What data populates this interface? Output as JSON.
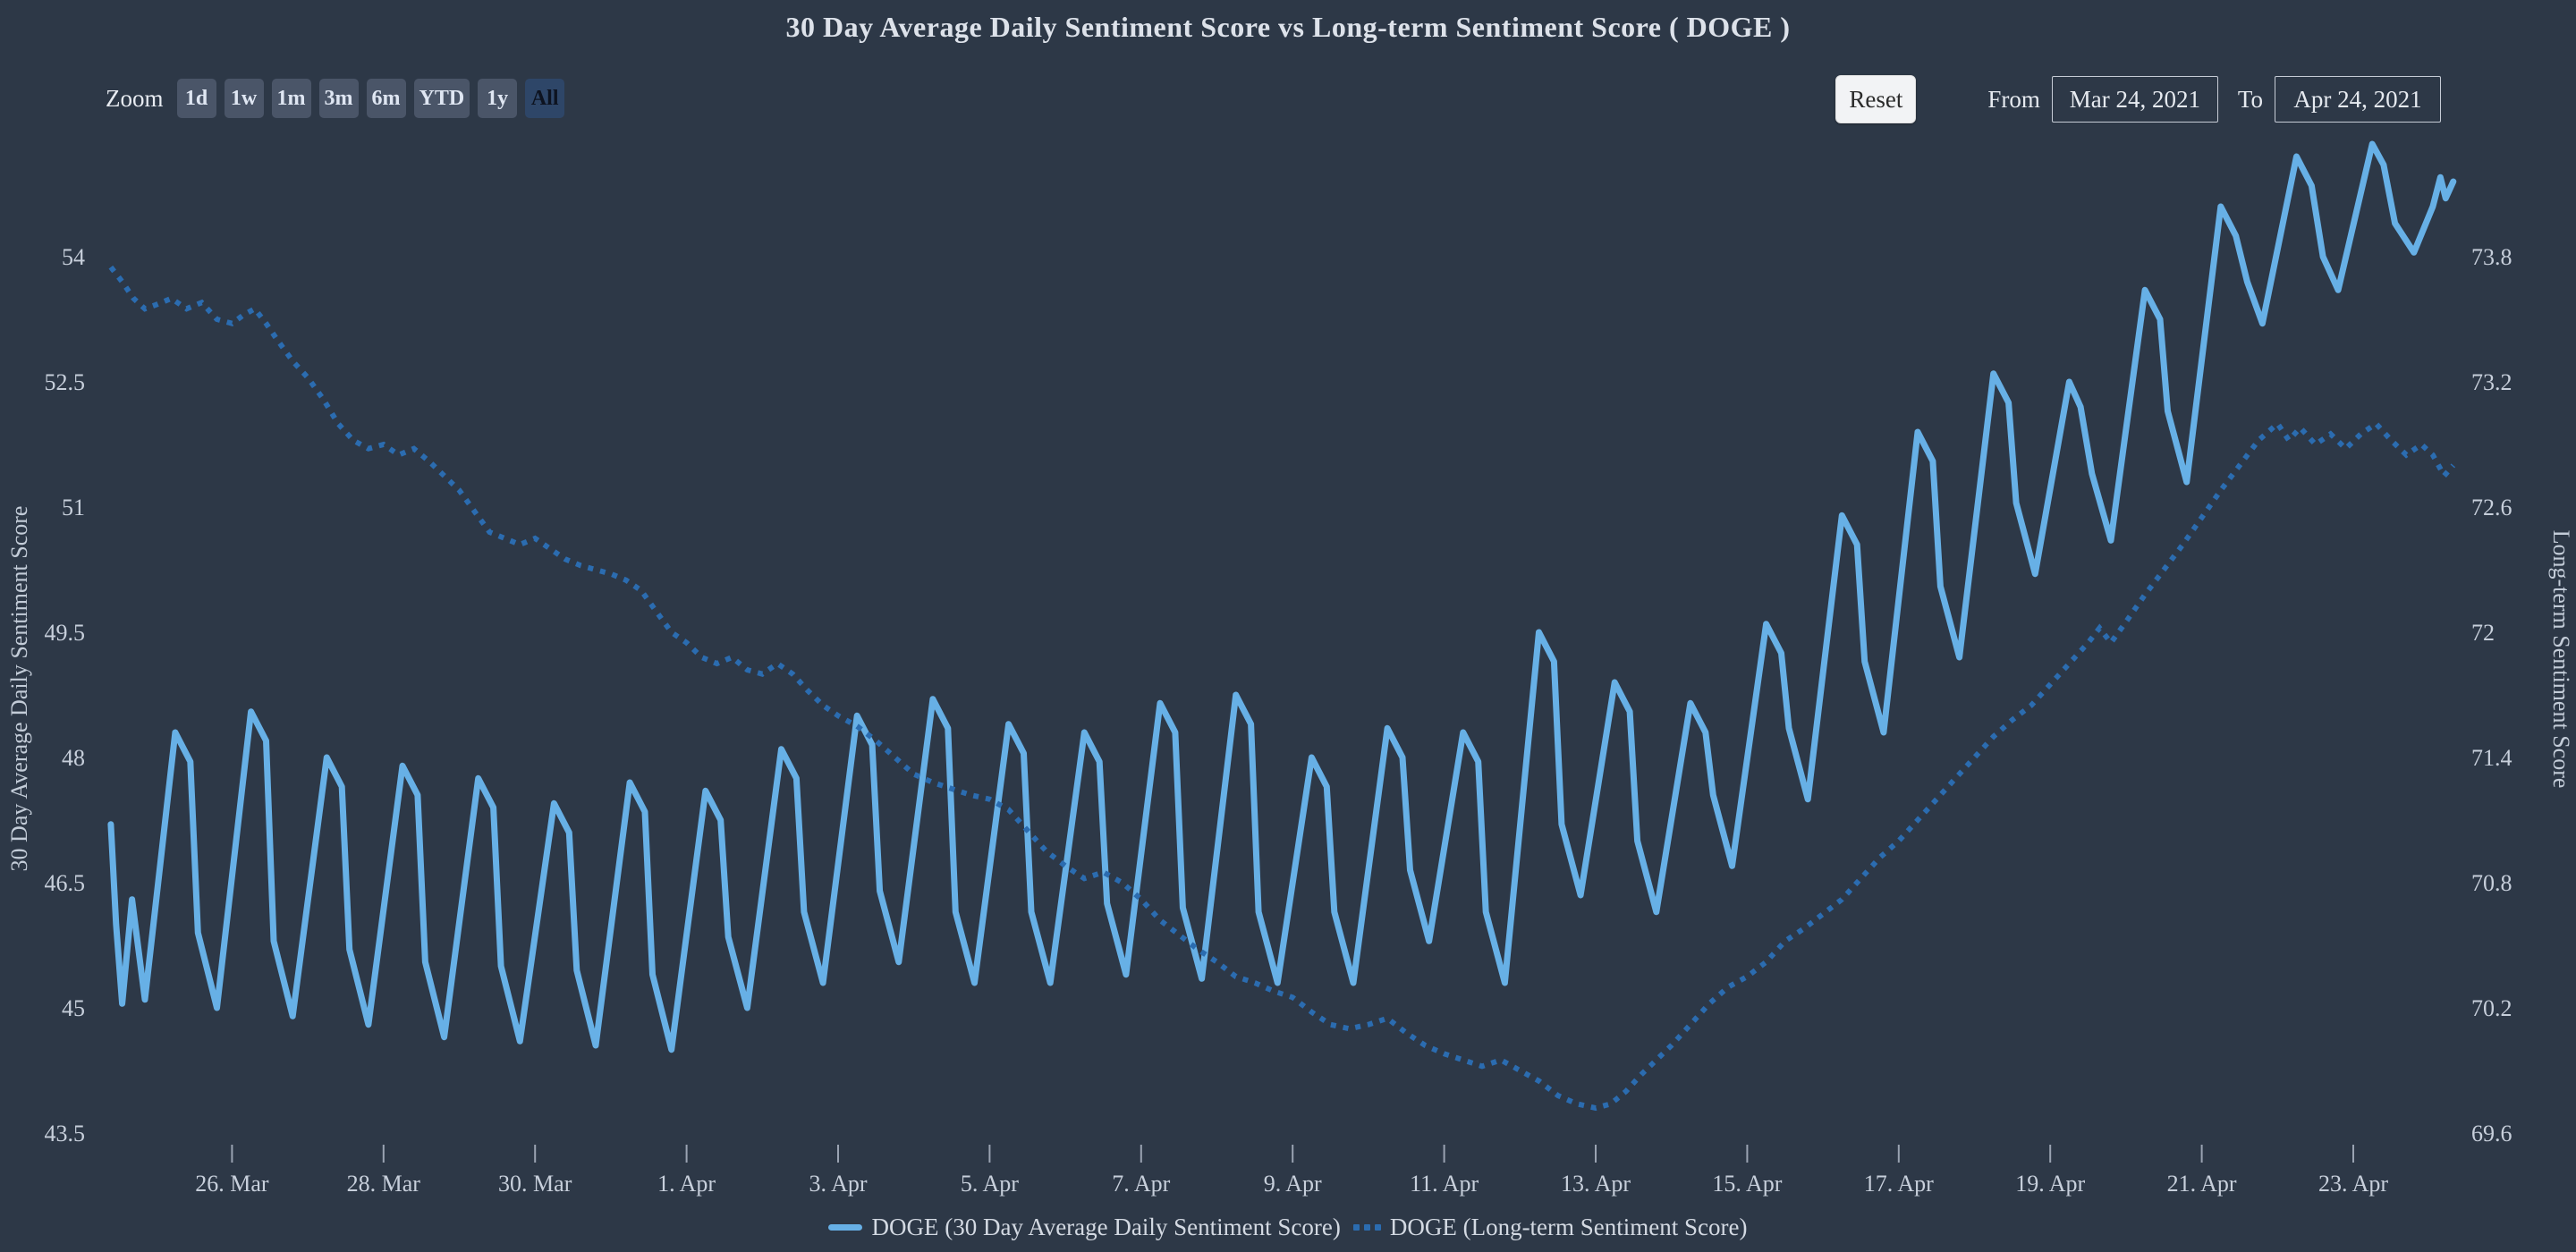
{
  "title": "30 Day Average Daily Sentiment Score vs Long-term Sentiment Score ( DOGE )",
  "colors": {
    "background": "#2d3847",
    "solid_series": "#67b0e6",
    "dotted_series": "#2b6cb0",
    "button_bg": "#4a5568",
    "button_selected_bg": "#2e4668",
    "text_light": "#dde2ea"
  },
  "toolbar": {
    "zoom_label": "Zoom",
    "zoom_buttons": [
      {
        "label": "1d",
        "selected": false
      },
      {
        "label": "1w",
        "selected": false
      },
      {
        "label": "1m",
        "selected": false
      },
      {
        "label": "3m",
        "selected": false
      },
      {
        "label": "6m",
        "selected": false
      },
      {
        "label": "YTD",
        "selected": false
      },
      {
        "label": "1y",
        "selected": false
      },
      {
        "label": "All",
        "selected": true
      }
    ],
    "reset_label": "Reset",
    "from_label": "From",
    "from_value": "Mar 24, 2021",
    "to_label": "To",
    "to_value": "Apr 24, 2021"
  },
  "legend": [
    {
      "label": "DOGE (30 Day Average Daily Sentiment Score)",
      "style": "solid",
      "color": "#67b0e6"
    },
    {
      "label": "DOGE (Long-term Sentiment Score)",
      "style": "dotted",
      "color": "#2b6cb0"
    }
  ],
  "chart_data": {
    "type": "line",
    "title": "30 Day Average Daily Sentiment Score vs Long-term Sentiment Score ( DOGE )",
    "x_unit": "days since Mar 24, 2021 (0 = Mar 24)",
    "x_axis": {
      "tick_days": [
        2,
        4,
        6,
        8,
        10,
        12,
        14,
        16,
        18,
        20,
        22,
        24,
        26,
        28,
        30
      ],
      "tick_labels": [
        "26. Mar",
        "28. Mar",
        "30. Mar",
        "1. Apr",
        "3. Apr",
        "5. Apr",
        "7. Apr",
        "9. Apr",
        "11. Apr",
        "13. Apr",
        "15. Apr",
        "17. Apr",
        "19. Apr",
        "21. Apr",
        "23. Apr"
      ]
    },
    "y_axis_left": {
      "title": "30 Day Average Daily Sentiment Score",
      "ticks": [
        54,
        52.5,
        51,
        49.5,
        48,
        46.5,
        45,
        43.5
      ],
      "top_value_at_top_tick": 54,
      "bottom_value": 43.5,
      "units_per_tick": 1.5,
      "grid": false
    },
    "y_axis_right": {
      "title": "Long-term Sentiment Score",
      "ticks": [
        73.8,
        73.2,
        72.6,
        72,
        71.4,
        70.8,
        70.2,
        69.6
      ],
      "top_value_at_top_tick": 73.8,
      "bottom_value": 69.6,
      "units_per_tick": 0.6,
      "grid": false
    },
    "legend_position": "bottom-center",
    "series": [
      {
        "name": "DOGE (30 Day Average Daily Sentiment Score)",
        "axis": "left",
        "line": "solid",
        "color": "#67b0e6",
        "points": [
          [
            0.4,
            47.2
          ],
          [
            0.47,
            46.0
          ],
          [
            0.55,
            45.05
          ],
          [
            0.68,
            46.3
          ],
          [
            0.85,
            45.1
          ],
          [
            1.25,
            48.3
          ],
          [
            1.45,
            47.95
          ],
          [
            1.55,
            45.9
          ],
          [
            1.8,
            45.0
          ],
          [
            2.25,
            48.55
          ],
          [
            2.45,
            48.2
          ],
          [
            2.55,
            45.8
          ],
          [
            2.8,
            44.9
          ],
          [
            3.25,
            48.0
          ],
          [
            3.45,
            47.65
          ],
          [
            3.55,
            45.7
          ],
          [
            3.8,
            44.8
          ],
          [
            4.25,
            47.9
          ],
          [
            4.45,
            47.55
          ],
          [
            4.55,
            45.55
          ],
          [
            4.8,
            44.65
          ],
          [
            5.25,
            47.75
          ],
          [
            5.45,
            47.4
          ],
          [
            5.55,
            45.5
          ],
          [
            5.8,
            44.6
          ],
          [
            6.25,
            47.45
          ],
          [
            6.45,
            47.1
          ],
          [
            6.55,
            45.45
          ],
          [
            6.8,
            44.55
          ],
          [
            7.25,
            47.7
          ],
          [
            7.45,
            47.35
          ],
          [
            7.55,
            45.4
          ],
          [
            7.8,
            44.5
          ],
          [
            8.25,
            47.6
          ],
          [
            8.45,
            47.25
          ],
          [
            8.55,
            45.85
          ],
          [
            8.8,
            45.0
          ],
          [
            9.25,
            48.1
          ],
          [
            9.45,
            47.75
          ],
          [
            9.55,
            46.15
          ],
          [
            9.8,
            45.3
          ],
          [
            10.25,
            48.5
          ],
          [
            10.45,
            48.15
          ],
          [
            10.55,
            46.4
          ],
          [
            10.8,
            45.55
          ],
          [
            11.25,
            48.7
          ],
          [
            11.45,
            48.35
          ],
          [
            11.55,
            46.15
          ],
          [
            11.8,
            45.3
          ],
          [
            12.25,
            48.4
          ],
          [
            12.45,
            48.05
          ],
          [
            12.55,
            46.15
          ],
          [
            12.8,
            45.3
          ],
          [
            13.25,
            48.3
          ],
          [
            13.45,
            47.95
          ],
          [
            13.55,
            46.25
          ],
          [
            13.8,
            45.4
          ],
          [
            14.25,
            48.65
          ],
          [
            14.45,
            48.3
          ],
          [
            14.55,
            46.2
          ],
          [
            14.8,
            45.35
          ],
          [
            15.25,
            48.75
          ],
          [
            15.45,
            48.4
          ],
          [
            15.55,
            46.15
          ],
          [
            15.8,
            45.3
          ],
          [
            16.25,
            48.0
          ],
          [
            16.45,
            47.65
          ],
          [
            16.55,
            46.15
          ],
          [
            16.8,
            45.3
          ],
          [
            17.25,
            48.35
          ],
          [
            17.45,
            48.0
          ],
          [
            17.55,
            46.65
          ],
          [
            17.8,
            45.8
          ],
          [
            18.25,
            48.3
          ],
          [
            18.45,
            47.95
          ],
          [
            18.55,
            46.15
          ],
          [
            18.8,
            45.3
          ],
          [
            19.25,
            49.5
          ],
          [
            19.45,
            49.15
          ],
          [
            19.55,
            47.2
          ],
          [
            19.8,
            46.35
          ],
          [
            20.25,
            48.9
          ],
          [
            20.45,
            48.55
          ],
          [
            20.55,
            47.0
          ],
          [
            20.8,
            46.15
          ],
          [
            21.25,
            48.65
          ],
          [
            21.45,
            48.3
          ],
          [
            21.55,
            47.55
          ],
          [
            21.8,
            46.7
          ],
          [
            22.25,
            49.6
          ],
          [
            22.45,
            49.25
          ],
          [
            22.55,
            48.35
          ],
          [
            22.8,
            47.5
          ],
          [
            23.25,
            50.9
          ],
          [
            23.45,
            50.55
          ],
          [
            23.55,
            49.15
          ],
          [
            23.8,
            48.3
          ],
          [
            24.25,
            51.9
          ],
          [
            24.45,
            51.55
          ],
          [
            24.55,
            50.05
          ],
          [
            24.8,
            49.2
          ],
          [
            25.25,
            52.6
          ],
          [
            25.45,
            52.25
          ],
          [
            25.55,
            51.05
          ],
          [
            25.8,
            50.2
          ],
          [
            26.25,
            52.5
          ],
          [
            26.4,
            52.2
          ],
          [
            26.55,
            51.4
          ],
          [
            26.8,
            50.6
          ],
          [
            27.25,
            53.6
          ],
          [
            27.45,
            53.25
          ],
          [
            27.55,
            52.15
          ],
          [
            27.8,
            51.3
          ],
          [
            28.25,
            54.6
          ],
          [
            28.45,
            54.25
          ],
          [
            28.6,
            53.7
          ],
          [
            28.8,
            53.2
          ],
          [
            29.25,
            55.2
          ],
          [
            29.45,
            54.85
          ],
          [
            29.6,
            54.0
          ],
          [
            29.8,
            53.6
          ],
          [
            30.25,
            55.35
          ],
          [
            30.4,
            55.1
          ],
          [
            30.55,
            54.4
          ],
          [
            30.8,
            54.05
          ],
          [
            31.05,
            54.6
          ],
          [
            31.15,
            54.95
          ],
          [
            31.22,
            54.7
          ],
          [
            31.32,
            54.9
          ]
        ]
      },
      {
        "name": "DOGE (Long-term Sentiment Score)",
        "axis": "right",
        "line": "dotted",
        "color": "#2b6cb0",
        "points": [
          [
            0.4,
            73.75
          ],
          [
            0.55,
            73.68
          ],
          [
            0.7,
            73.6
          ],
          [
            0.85,
            73.55
          ],
          [
            1.0,
            73.57
          ],
          [
            1.2,
            73.6
          ],
          [
            1.4,
            73.55
          ],
          [
            1.6,
            73.58
          ],
          [
            1.8,
            73.5
          ],
          [
            2.0,
            73.48
          ],
          [
            2.15,
            73.52
          ],
          [
            2.3,
            73.55
          ],
          [
            2.45,
            73.48
          ],
          [
            2.6,
            73.4
          ],
          [
            2.8,
            73.3
          ],
          [
            3.0,
            73.22
          ],
          [
            3.2,
            73.12
          ],
          [
            3.4,
            73.0
          ],
          [
            3.6,
            72.92
          ],
          [
            3.8,
            72.88
          ],
          [
            4.0,
            72.9
          ],
          [
            4.2,
            72.85
          ],
          [
            4.4,
            72.88
          ],
          [
            4.6,
            72.82
          ],
          [
            4.8,
            72.75
          ],
          [
            5.0,
            72.68
          ],
          [
            5.2,
            72.58
          ],
          [
            5.4,
            72.48
          ],
          [
            5.6,
            72.45
          ],
          [
            5.8,
            72.42
          ],
          [
            6.0,
            72.45
          ],
          [
            6.2,
            72.4
          ],
          [
            6.4,
            72.35
          ],
          [
            6.6,
            72.32
          ],
          [
            6.8,
            72.3
          ],
          [
            7.0,
            72.28
          ],
          [
            7.2,
            72.25
          ],
          [
            7.4,
            72.2
          ],
          [
            7.6,
            72.1
          ],
          [
            7.8,
            72.0
          ],
          [
            8.0,
            71.95
          ],
          [
            8.2,
            71.88
          ],
          [
            8.4,
            71.85
          ],
          [
            8.6,
            71.88
          ],
          [
            8.8,
            71.82
          ],
          [
            9.0,
            71.8
          ],
          [
            9.2,
            71.85
          ],
          [
            9.4,
            71.8
          ],
          [
            9.6,
            71.72
          ],
          [
            9.8,
            71.65
          ],
          [
            10.0,
            71.6
          ],
          [
            10.25,
            71.55
          ],
          [
            10.5,
            71.48
          ],
          [
            10.75,
            71.4
          ],
          [
            11.0,
            71.32
          ],
          [
            11.25,
            71.28
          ],
          [
            11.5,
            71.25
          ],
          [
            11.75,
            71.22
          ],
          [
            12.0,
            71.2
          ],
          [
            12.25,
            71.15
          ],
          [
            12.5,
            71.05
          ],
          [
            12.75,
            70.95
          ],
          [
            13.0,
            70.88
          ],
          [
            13.25,
            70.82
          ],
          [
            13.5,
            70.85
          ],
          [
            13.75,
            70.8
          ],
          [
            14.0,
            70.72
          ],
          [
            14.25,
            70.62
          ],
          [
            14.5,
            70.55
          ],
          [
            14.75,
            70.48
          ],
          [
            15.0,
            70.42
          ],
          [
            15.25,
            70.35
          ],
          [
            15.5,
            70.32
          ],
          [
            15.75,
            70.28
          ],
          [
            16.0,
            70.25
          ],
          [
            16.25,
            70.18
          ],
          [
            16.5,
            70.12
          ],
          [
            16.75,
            70.1
          ],
          [
            17.0,
            70.12
          ],
          [
            17.25,
            70.15
          ],
          [
            17.5,
            70.08
          ],
          [
            17.75,
            70.02
          ],
          [
            18.0,
            69.98
          ],
          [
            18.25,
            69.95
          ],
          [
            18.5,
            69.92
          ],
          [
            18.75,
            69.95
          ],
          [
            19.0,
            69.9
          ],
          [
            19.25,
            69.85
          ],
          [
            19.5,
            69.78
          ],
          [
            19.75,
            69.74
          ],
          [
            20.0,
            69.72
          ],
          [
            20.2,
            69.74
          ],
          [
            20.4,
            69.8
          ],
          [
            20.6,
            69.88
          ],
          [
            20.8,
            69.95
          ],
          [
            21.0,
            70.02
          ],
          [
            21.25,
            70.12
          ],
          [
            21.5,
            70.22
          ],
          [
            21.75,
            70.3
          ],
          [
            22.0,
            70.35
          ],
          [
            22.25,
            70.42
          ],
          [
            22.5,
            70.52
          ],
          [
            22.75,
            70.58
          ],
          [
            23.0,
            70.65
          ],
          [
            23.25,
            70.72
          ],
          [
            23.5,
            70.82
          ],
          [
            23.75,
            70.92
          ],
          [
            24.0,
            71.0
          ],
          [
            24.25,
            71.1
          ],
          [
            24.5,
            71.2
          ],
          [
            24.75,
            71.3
          ],
          [
            25.0,
            71.4
          ],
          [
            25.25,
            71.5
          ],
          [
            25.5,
            71.58
          ],
          [
            25.75,
            71.65
          ],
          [
            26.0,
            71.75
          ],
          [
            26.25,
            71.85
          ],
          [
            26.5,
            71.95
          ],
          [
            26.65,
            72.02
          ],
          [
            26.8,
            71.95
          ],
          [
            27.0,
            72.05
          ],
          [
            27.25,
            72.18
          ],
          [
            27.5,
            72.3
          ],
          [
            27.75,
            72.42
          ],
          [
            28.0,
            72.55
          ],
          [
            28.25,
            72.68
          ],
          [
            28.5,
            72.8
          ],
          [
            28.75,
            72.92
          ],
          [
            29.0,
            73.0
          ],
          [
            29.15,
            72.92
          ],
          [
            29.3,
            72.98
          ],
          [
            29.5,
            72.9
          ],
          [
            29.7,
            72.95
          ],
          [
            29.9,
            72.88
          ],
          [
            30.1,
            72.95
          ],
          [
            30.3,
            73.0
          ],
          [
            30.5,
            72.92
          ],
          [
            30.7,
            72.85
          ],
          [
            30.9,
            72.9
          ],
          [
            31.05,
            72.85
          ],
          [
            31.2,
            72.75
          ],
          [
            31.32,
            72.8
          ]
        ]
      }
    ]
  }
}
